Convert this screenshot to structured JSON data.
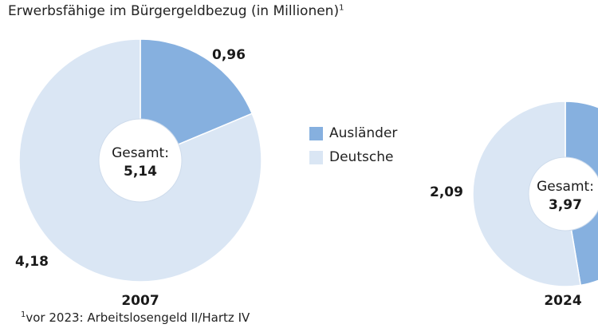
{
  "title": "Erwerbsfähige im Bürgergeldbezug (in Millionen)",
  "title_footnote_mark": "1",
  "footnote": {
    "mark": "1",
    "text": "vor 2023: Arbeitslosengeld II/Hartz IV"
  },
  "colors": {
    "auslaender": "#86b0df",
    "deutsche": "#dae6f4",
    "stroke": "#ffffff"
  },
  "chart_data": [
    {
      "type": "pie",
      "year": "2007",
      "center_label": "Gesamt:",
      "total": "5,14",
      "series": [
        {
          "name": "Ausländer",
          "value": 0.96,
          "label": "0,96"
        },
        {
          "name": "Deutsche",
          "value": 4.18,
          "label": "4,18"
        }
      ]
    },
    {
      "type": "pie",
      "year": "2024",
      "center_label": "Gesamt:",
      "total": "3,97",
      "series": [
        {
          "name": "Ausländer",
          "value": 1.88,
          "label": ""
        },
        {
          "name": "Deutsche",
          "value": 2.09,
          "label": "2,09"
        }
      ]
    }
  ],
  "legend": [
    {
      "name": "Ausländer",
      "color": "#86b0df"
    },
    {
      "name": "Deutsche",
      "color": "#dae6f4"
    }
  ]
}
